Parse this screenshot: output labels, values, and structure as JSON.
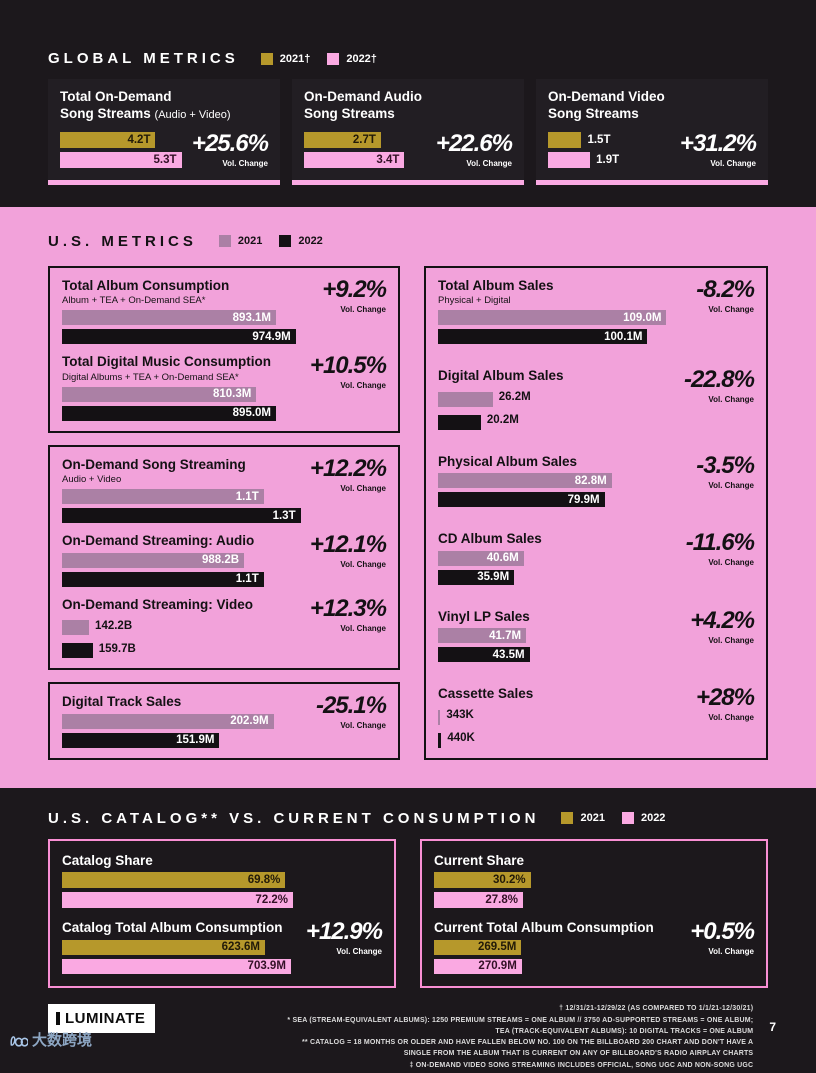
{
  "chart_data": {
    "global": {
      "type": "bar",
      "title": "GLOBAL METRICS",
      "legend": [
        {
          "label": "2021†",
          "color": "#b6982b"
        },
        {
          "label": "2022†",
          "color": "#faa9e2"
        }
      ],
      "vol_label": "Vol. Change",
      "cards": [
        {
          "l1": "Total On-Demand",
          "l2": "Song Streams",
          "sub": "(Audio + Video)",
          "v1": "4.2T",
          "n1": 4.2,
          "w1": 77,
          "v2": "5.3T",
          "n2": 5.3,
          "w2": 98,
          "change": "+25.6%"
        },
        {
          "l1": "On-Demand Audio",
          "l2": "Song Streams",
          "sub": "",
          "v1": "2.7T",
          "n1": 2.7,
          "w1": 62,
          "v2": "3.4T",
          "n2": 3.4,
          "w2": 81,
          "change": "+22.6%"
        },
        {
          "l1": "On-Demand Video",
          "l2": "Song Streams",
          "sub": "",
          "v1": "1.5T",
          "n1": 1.5,
          "w1": 27,
          "v2": "1.9T",
          "n2": 1.9,
          "w2": 34,
          "change": "+31.2%"
        }
      ]
    },
    "us": {
      "type": "bar",
      "title": "U.S. METRICS",
      "legend": [
        {
          "label": "2021",
          "color": "#ab80a5"
        },
        {
          "label": "2022",
          "color": "#141114"
        }
      ],
      "vol_label": "Vol. Change",
      "left": [
        {
          "metrics": [
            {
              "t": "Total Album Consumption",
              "sub": "Album + TEA + On-Demand SEA*",
              "v1": "893.1M",
              "n1": 893.1,
              "w1": 87,
              "v2": "974.9M",
              "n2": 974.9,
              "w2": 95,
              "change": "+9.2%"
            },
            {
              "t": "Total Digital Music Consumption",
              "sub": "Digital Albums + TEA + On-Demand SEA*",
              "v1": "810.3M",
              "n1": 810.3,
              "w1": 79,
              "v2": "895.0M",
              "n2": 895.0,
              "w2": 87,
              "change": "+10.5%"
            }
          ]
        },
        {
          "metrics": [
            {
              "t": "On-Demand Song Streaming",
              "sub": "Audio + Video",
              "v1": "1.1T",
              "n1": 1.1,
              "w1": 82,
              "v2": "1.3T",
              "n2": 1.3,
              "w2": 97,
              "change": "+12.2%"
            },
            {
              "t": "On-Demand Streaming: Audio",
              "v1": "988.2B",
              "n1": 988.2,
              "w1": 74,
              "v2": "1.1T",
              "n2": 1.1,
              "w2": 82,
              "change": "+12.1%"
            },
            {
              "t": "On-Demand Streaming: Video",
              "v1": "142.2B",
              "n1": 142.2,
              "w1": 11,
              "v2": "159.7B",
              "n2": 159.7,
              "w2": 12.5,
              "change": "+12.3%"
            }
          ]
        },
        {
          "metrics": [
            {
              "t": "Digital Track Sales",
              "v1": "202.9M",
              "n1": 202.9,
              "w1": 86,
              "v2": "151.9M",
              "n2": 151.9,
              "w2": 64,
              "change": "-25.1%"
            }
          ]
        }
      ],
      "right": [
        {
          "t": "Total Album Sales",
          "sub": "Physical + Digital",
          "v1": "109.0M",
          "n1": 109.0,
          "w1": 96,
          "v2": "100.1M",
          "n2": 100.1,
          "w2": 88,
          "change": "-8.2%"
        },
        {
          "t": "Digital Album Sales",
          "v1": "26.2M",
          "n1": 26.2,
          "w1": 23,
          "v2": "20.2M",
          "n2": 20.2,
          "w2": 18,
          "change": "-22.8%"
        },
        {
          "t": "Physical Album Sales",
          "v1": "82.8M",
          "n1": 82.8,
          "w1": 73,
          "v2": "79.9M",
          "n2": 79.9,
          "w2": 70,
          "change": "-3.5%"
        },
        {
          "t": "CD Album Sales",
          "v1": "40.6M",
          "n1": 40.6,
          "w1": 36,
          "v2": "35.9M",
          "n2": 35.9,
          "w2": 32,
          "change": "-11.6%"
        },
        {
          "t": "Vinyl LP Sales",
          "v1": "41.7M",
          "n1": 41.7,
          "w1": 37,
          "v2": "43.5M",
          "n2": 43.5,
          "w2": 38.5,
          "change": "+4.2%"
        },
        {
          "t": "Cassette Sales",
          "v1": "343K",
          "n1": 343,
          "w1": 1,
          "v2": "440K",
          "n2": 440,
          "w2": 1.4,
          "change": "+28%"
        }
      ]
    },
    "catalog": {
      "type": "bar",
      "title": "U.S. CATALOG** VS. CURRENT CONSUMPTION",
      "legend": [
        {
          "label": "2021",
          "color": "#b6982b"
        },
        {
          "label": "2022",
          "color": "#faa9e2"
        }
      ],
      "vol_label": "Vol. Change",
      "cards": [
        {
          "metrics": [
            {
              "t": "Catalog Share",
              "v1": "69.8%",
              "n1": 69.8,
              "w1": 69.8,
              "v2": "72.2%",
              "n2": 72.2,
              "w2": 72.2
            },
            {
              "t": "Catalog Total Album Consumption",
              "v1": "623.6M",
              "n1": 623.6,
              "w1": 86,
              "v2": "703.9M",
              "n2": 703.9,
              "w2": 97,
              "change": "+12.9%"
            }
          ]
        },
        {
          "metrics": [
            {
              "t": "Current Share",
              "v1": "30.2%",
              "n1": 30.2,
              "w1": 30.2,
              "v2": "27.8%",
              "n2": 27.8,
              "w2": 27.8
            },
            {
              "t": "Current Total Album Consumption",
              "v1": "269.5M",
              "n1": 269.5,
              "w1": 37,
              "v2": "270.9M",
              "n2": 270.9,
              "w2": 37.2,
              "change": "+0.5%"
            }
          ]
        }
      ]
    }
  },
  "footer": {
    "logo": "LUMINATE",
    "page": "7",
    "notes": [
      "† 12/31/21-12/29/22 (AS COMPARED TO 1/1/21-12/30/21)",
      "* SEA (STREAM-EQUIVALENT ALBUMS): 1250 PREMIUM STREAMS = ONE ALBUM // 3750 AD-SUPPORTED STREAMS = ONE ALBUM; TEA (TRACK-EQUIVALENT ALBUMS): 10 DIGITAL TRACKS = ONE ALBUM",
      "** CATALOG = 18 MONTHS OR OLDER AND HAVE FALLEN BELOW NO. 100 ON THE BILLBOARD 200 CHART AND DON'T HAVE A SINGLE FROM THE ALBUM THAT IS CURRENT ON ANY OF BILLBOARD'S RADIO AIRPLAY CHARTS",
      "‡ ON-DEMAND VIDEO SONG STREAMING INCLUDES OFFICIAL, SONG UGC AND NON-SONG UGC"
    ]
  },
  "watermark": {
    "text": "大数跨境"
  }
}
